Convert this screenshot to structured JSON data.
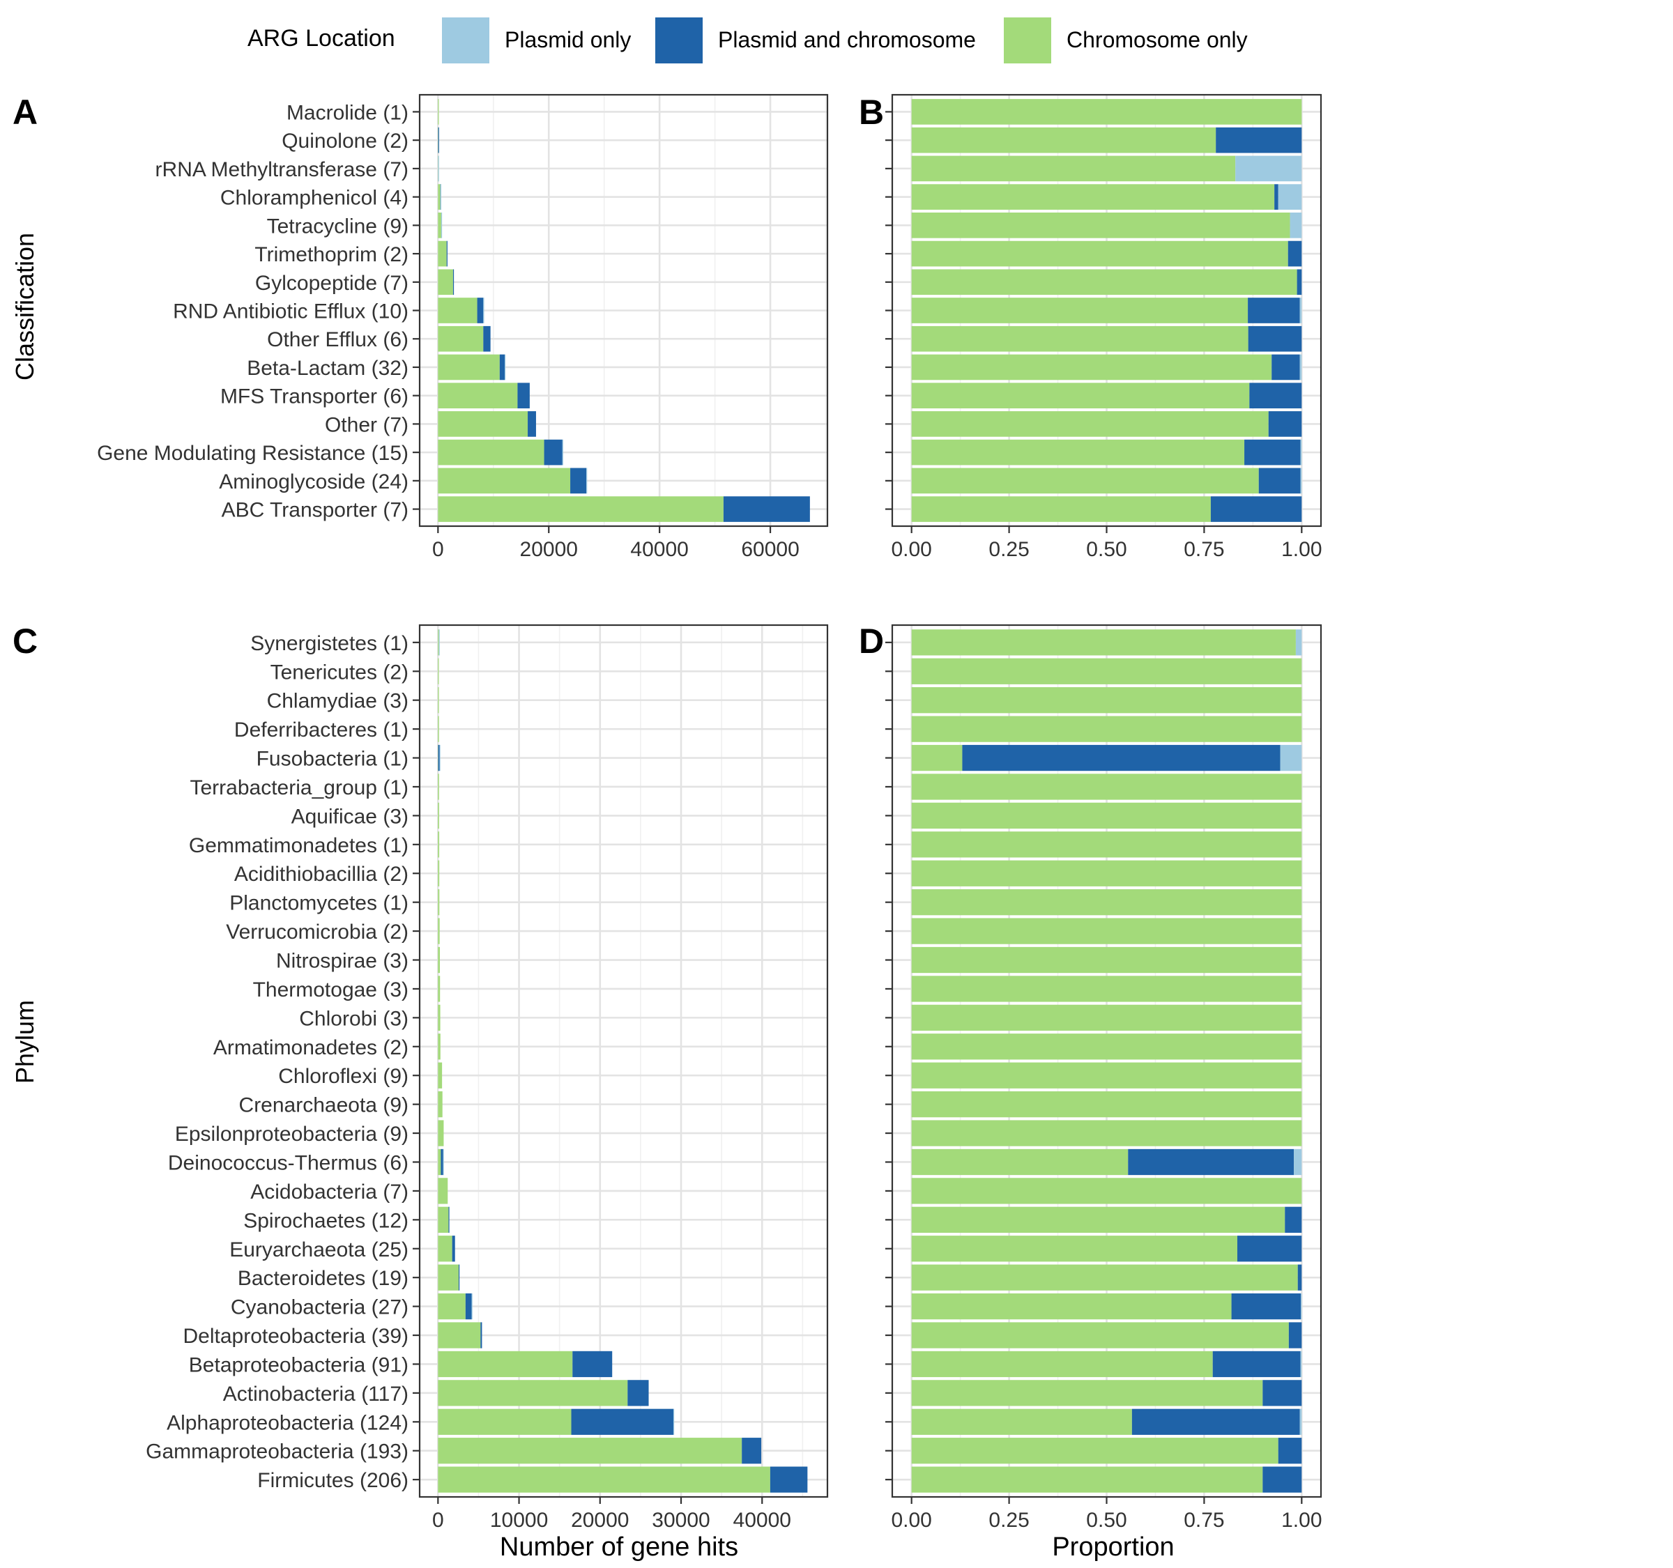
{
  "legend": {
    "title": "ARG Location",
    "items": [
      {
        "key": "plasmid",
        "label": "Plasmid only",
        "color": "#9ecae1"
      },
      {
        "key": "both",
        "label": "Plasmid and chromosome",
        "color": "#1f63a8"
      },
      {
        "key": "chrom",
        "label": "Chromosome only",
        "color": "#a3da7a"
      }
    ]
  },
  "colors": {
    "plasmid": "#9ecae1",
    "both": "#1f63a8",
    "chrom": "#a3da7a"
  },
  "xlabels": {
    "count": "Number of gene hits",
    "prop": "Proportion"
  },
  "chart_data": [
    {
      "panel": "A",
      "type": "bar",
      "orientation": "horizontal",
      "stacked": true,
      "ylabel": "Classification",
      "xlabel": "",
      "xlim": [
        0,
        67000
      ],
      "xticks": [
        0,
        20000,
        40000,
        60000
      ],
      "xtick_labels": [
        "0",
        "20000",
        "40000",
        "60000"
      ],
      "categories": [
        "Macrolide (1)",
        "Quinolone (2)",
        "rRNA Methyltransferase (7)",
        "Chloramphenicol (4)",
        "Tetracycline (9)",
        "Trimethoprim (2)",
        "Gylcopeptide (7)",
        "RND Antibiotic Efflux (10)",
        "Other Efflux (6)",
        "Beta-Lactam (32)",
        "MFS Transporter (6)",
        "Other (7)",
        "Gene Modulating Resistance (15)",
        "Aminoglycoside (24)",
        "ABC Transporter (7)"
      ],
      "series": [
        {
          "name": "Chromosome only",
          "key": "chrom",
          "values": [
            20,
            40,
            30,
            420,
            580,
            1560,
            2720,
            7080,
            8180,
            11140,
            14360,
            16200,
            19160,
            23880,
            51550
          ]
        },
        {
          "name": "Plasmid and chromosome",
          "key": "both",
          "values": [
            0,
            10,
            0,
            5,
            0,
            60,
            30,
            1100,
            1300,
            900,
            2200,
            1500,
            3300,
            2900,
            15600
          ]
        },
        {
          "name": "Plasmid only",
          "key": "plasmid",
          "values": [
            0,
            0,
            6,
            25,
            15,
            0,
            0,
            20,
            0,
            20,
            0,
            0,
            20,
            20,
            0
          ]
        }
      ]
    },
    {
      "panel": "B",
      "type": "bar",
      "orientation": "horizontal",
      "stacked": true,
      "xlabel": "",
      "xlim": [
        0,
        1
      ],
      "xticks": [
        0,
        0.25,
        0.5,
        0.75,
        1
      ],
      "xtick_labels": [
        "0.00",
        "0.25",
        "0.50",
        "0.75",
        "1.00"
      ],
      "categories": [
        "Macrolide (1)",
        "Quinolone (2)",
        "rRNA Methyltransferase (7)",
        "Chloramphenicol (4)",
        "Tetracycline (9)",
        "Trimethoprim (2)",
        "Gylcopeptide (7)",
        "RND Antibiotic Efflux (10)",
        "Other Efflux (6)",
        "Beta-Lactam (32)",
        "MFS Transporter (6)",
        "Other (7)",
        "Gene Modulating Resistance (15)",
        "Aminoglycoside (24)",
        "ABC Transporter (7)"
      ],
      "series": [
        {
          "name": "Chromosome only",
          "key": "chrom",
          "values": [
            1.0,
            0.78,
            0.83,
            0.93,
            0.97,
            0.965,
            0.988,
            0.862,
            0.863,
            0.923,
            0.866,
            0.915,
            0.853,
            0.89,
            0.767
          ]
        },
        {
          "name": "Plasmid and chromosome",
          "key": "both",
          "values": [
            0.0,
            0.22,
            0.0,
            0.01,
            0.0,
            0.035,
            0.012,
            0.133,
            0.137,
            0.072,
            0.134,
            0.085,
            0.144,
            0.107,
            0.233
          ]
        },
        {
          "name": "Plasmid only",
          "key": "plasmid",
          "values": [
            0.0,
            0.0,
            0.17,
            0.06,
            0.03,
            0.0,
            0.0,
            0.005,
            0.0,
            0.005,
            0.0,
            0.0,
            0.003,
            0.003,
            0.0
          ]
        }
      ]
    },
    {
      "panel": "C",
      "type": "bar",
      "orientation": "horizontal",
      "stacked": true,
      "ylabel": "Phylum",
      "xlabel": "Number of gene hits",
      "xlim": [
        0,
        45800
      ],
      "xticks": [
        0,
        10000,
        20000,
        30000,
        40000
      ],
      "xtick_labels": [
        "0",
        "10000",
        "20000",
        "30000",
        "40000"
      ],
      "categories": [
        "Synergistetes (1)",
        "Tenericutes (2)",
        "Chlamydiae (3)",
        "Deferribacteres (1)",
        "Fusobacteria (1)",
        "Terrabacteria_group (1)",
        "Aquificae (3)",
        "Gemmatimonadetes (1)",
        "Acidithiobacillia (2)",
        "Planctomycetes (1)",
        "Verrucomicrobia (2)",
        "Nitrospirae (3)",
        "Thermotogae (3)",
        "Chlorobi (3)",
        "Armatimonadetes (2)",
        "Chloroflexi (9)",
        "Crenarchaeota (9)",
        "Epsilonproteobacteria (9)",
        "Deinococcus-Thermus (6)",
        "Acidobacteria (7)",
        "Spirochaetes (12)",
        "Euryarchaeota (25)",
        "Bacteroidetes (19)",
        "Cyanobacteria (27)",
        "Deltaproteobacteria (39)",
        "Betaproteobacteria (91)",
        "Actinobacteria (117)",
        "Alphaproteobacteria (124)",
        "Gammaproteobacteria (193)",
        "Firmicutes (206)"
      ],
      "series": [
        {
          "name": "Chromosome only",
          "key": "chrom",
          "values": [
            100,
            100,
            110,
            120,
            25,
            130,
            140,
            150,
            160,
            170,
            200,
            230,
            250,
            280,
            300,
            500,
            550,
            700,
            350,
            1200,
            1300,
            1750,
            2550,
            3400,
            5250,
            16600,
            23400,
            16450,
            37500,
            41000
          ]
        },
        {
          "name": "Plasmid and chromosome",
          "key": "both",
          "values": [
            0,
            0,
            0,
            0,
            160,
            0,
            0,
            0,
            0,
            0,
            0,
            0,
            0,
            0,
            0,
            0,
            0,
            0,
            270,
            0,
            70,
            350,
            20,
            750,
            180,
            4900,
            2600,
            12600,
            2400,
            4600
          ]
        },
        {
          "name": "Plasmid only",
          "key": "plasmid",
          "values": [
            2,
            0,
            0,
            0,
            10,
            0,
            0,
            0,
            0,
            0,
            0,
            0,
            0,
            0,
            0,
            0,
            0,
            0,
            10,
            0,
            0,
            0,
            0,
            5,
            0,
            0,
            0,
            100,
            0,
            0
          ]
        }
      ]
    },
    {
      "panel": "D",
      "type": "bar",
      "orientation": "horizontal",
      "stacked": true,
      "xlabel": "Proportion",
      "xlim": [
        0,
        1
      ],
      "xticks": [
        0,
        0.25,
        0.5,
        0.75,
        1
      ],
      "xtick_labels": [
        "0.00",
        "0.25",
        "0.50",
        "0.75",
        "1.00"
      ],
      "categories": [
        "Synergistetes (1)",
        "Tenericutes (2)",
        "Chlamydiae (3)",
        "Deferribacteres (1)",
        "Fusobacteria (1)",
        "Terrabacteria_group (1)",
        "Aquificae (3)",
        "Gemmatimonadetes (1)",
        "Acidithiobacillia (2)",
        "Planctomycetes (1)",
        "Verrucomicrobia (2)",
        "Nitrospirae (3)",
        "Thermotogae (3)",
        "Chlorobi (3)",
        "Armatimonadetes (2)",
        "Chloroflexi (9)",
        "Crenarchaeota (9)",
        "Epsilonproteobacteria (9)",
        "Deinococcus-Thermus (6)",
        "Acidobacteria (7)",
        "Spirochaetes (12)",
        "Euryarchaeota (25)",
        "Bacteroidetes (19)",
        "Cyanobacteria (27)",
        "Deltaproteobacteria (39)",
        "Betaproteobacteria (91)",
        "Actinobacteria (117)",
        "Alphaproteobacteria (124)",
        "Gammaproteobacteria (193)",
        "Firmicutes (206)"
      ],
      "series": [
        {
          "name": "Chromosome only",
          "key": "chrom",
          "values": [
            0.985,
            1.0,
            1.0,
            1.0,
            0.13,
            1.0,
            1.0,
            1.0,
            1.0,
            1.0,
            1.0,
            1.0,
            1.0,
            1.0,
            1.0,
            1.0,
            1.0,
            1.0,
            0.555,
            1.0,
            0.957,
            0.835,
            0.99,
            0.82,
            0.967,
            0.772,
            0.9,
            0.565,
            0.94,
            0.9
          ]
        },
        {
          "name": "Plasmid and chromosome",
          "key": "both",
          "values": [
            0.0,
            0.0,
            0.0,
            0.0,
            0.815,
            0.0,
            0.0,
            0.0,
            0.0,
            0.0,
            0.0,
            0.0,
            0.0,
            0.0,
            0.0,
            0.0,
            0.0,
            0.0,
            0.425,
            0.0,
            0.043,
            0.165,
            0.01,
            0.178,
            0.033,
            0.225,
            0.1,
            0.43,
            0.06,
            0.1
          ]
        },
        {
          "name": "Plasmid only",
          "key": "plasmid",
          "values": [
            0.015,
            0.0,
            0.0,
            0.0,
            0.055,
            0.0,
            0.0,
            0.0,
            0.0,
            0.0,
            0.0,
            0.0,
            0.0,
            0.0,
            0.0,
            0.0,
            0.0,
            0.0,
            0.02,
            0.0,
            0.0,
            0.0,
            0.0,
            0.002,
            0.0,
            0.003,
            0.0,
            0.005,
            0.0,
            0.0
          ]
        }
      ]
    }
  ]
}
